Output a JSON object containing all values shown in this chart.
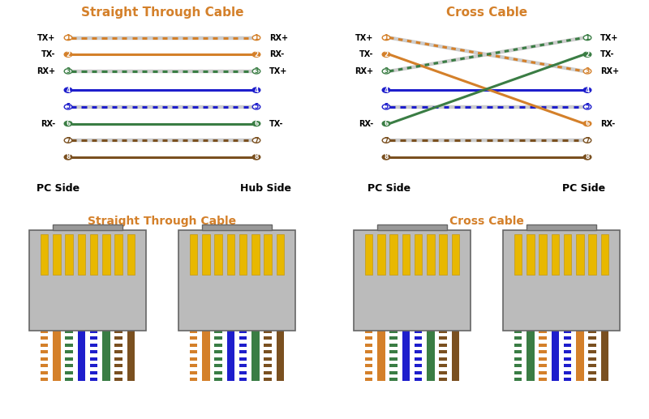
{
  "bg_color": "#ffffff",
  "title_color": "#d4802a",
  "title_straight": "Straight Through Cable",
  "title_cross": "Cross Cable",
  "wire_colors": {
    "1": {
      "solid": "#d4802a",
      "stripe": true,
      "circle_fill": "#ffffff",
      "circle_edge": "#d4802a"
    },
    "2": {
      "solid": "#d4802a",
      "stripe": false,
      "circle_fill": "#d4802a",
      "circle_edge": "#d4802a"
    },
    "3": {
      "solid": "#3a7d44",
      "stripe": true,
      "circle_fill": "#ffffff",
      "circle_edge": "#3a7d44"
    },
    "4": {
      "solid": "#1e1ecc",
      "stripe": false,
      "circle_fill": "#1e1ecc",
      "circle_edge": "#1e1ecc"
    },
    "5": {
      "solid": "#1e1ecc",
      "stripe": true,
      "circle_fill": "#ffffff",
      "circle_edge": "#1e1ecc"
    },
    "6": {
      "solid": "#3a7d44",
      "stripe": false,
      "circle_fill": "#3a7d44",
      "circle_edge": "#3a7d44"
    },
    "7": {
      "solid": "#7a5020",
      "stripe": true,
      "circle_fill": "#ffffff",
      "circle_edge": "#7a5020"
    },
    "8": {
      "solid": "#7a5020",
      "stripe": false,
      "circle_fill": "#7a5020",
      "circle_edge": "#7a5020"
    }
  },
  "left_labels_straight": {
    "1": "TX+",
    "2": "TX-",
    "3": "RX+",
    "4": "",
    "5": "",
    "6": "RX-",
    "7": "",
    "8": ""
  },
  "right_labels_straight": {
    "1": "RX+",
    "2": "RX-",
    "3": "TX+",
    "4": "",
    "5": "",
    "6": "TX-",
    "7": "",
    "8": ""
  },
  "left_labels_cross": {
    "1": "TX+",
    "2": "TX-",
    "3": "RX+",
    "4": "",
    "5": "",
    "6": "RX-",
    "7": "",
    "8": ""
  },
  "right_labels_cross": {
    "1": "TX+",
    "2": "TX-",
    "3": "RX+",
    "4": "",
    "5": "",
    "6": "RX-",
    "7": "",
    "8": ""
  },
  "connector_body_color": "#bbbbbb",
  "connector_edge_color": "#666666",
  "connector_tab_color": "#999999",
  "pin_color": "#e8b800",
  "pin_edge_color": "#c09000",
  "wire_order_568b": [
    [
      "#d4802a",
      "#ffffff"
    ],
    [
      "#d4802a",
      "none"
    ],
    [
      "#3a7d44",
      "#ffffff"
    ],
    [
      "#1e1ecc",
      "none"
    ],
    [
      "#1e1ecc",
      "#ffffff"
    ],
    [
      "#3a7d44",
      "none"
    ],
    [
      "#7a5020",
      "#ffffff"
    ],
    [
      "#7a5020",
      "none"
    ]
  ],
  "wire_order_cross_right": [
    [
      "#3a7d44",
      "#ffffff"
    ],
    [
      "#3a7d44",
      "none"
    ],
    [
      "#d4802a",
      "#ffffff"
    ],
    [
      "#1e1ecc",
      "none"
    ],
    [
      "#1e1ecc",
      "#ffffff"
    ],
    [
      "#d4802a",
      "none"
    ],
    [
      "#7a5020",
      "#ffffff"
    ],
    [
      "#7a5020",
      "none"
    ]
  ]
}
